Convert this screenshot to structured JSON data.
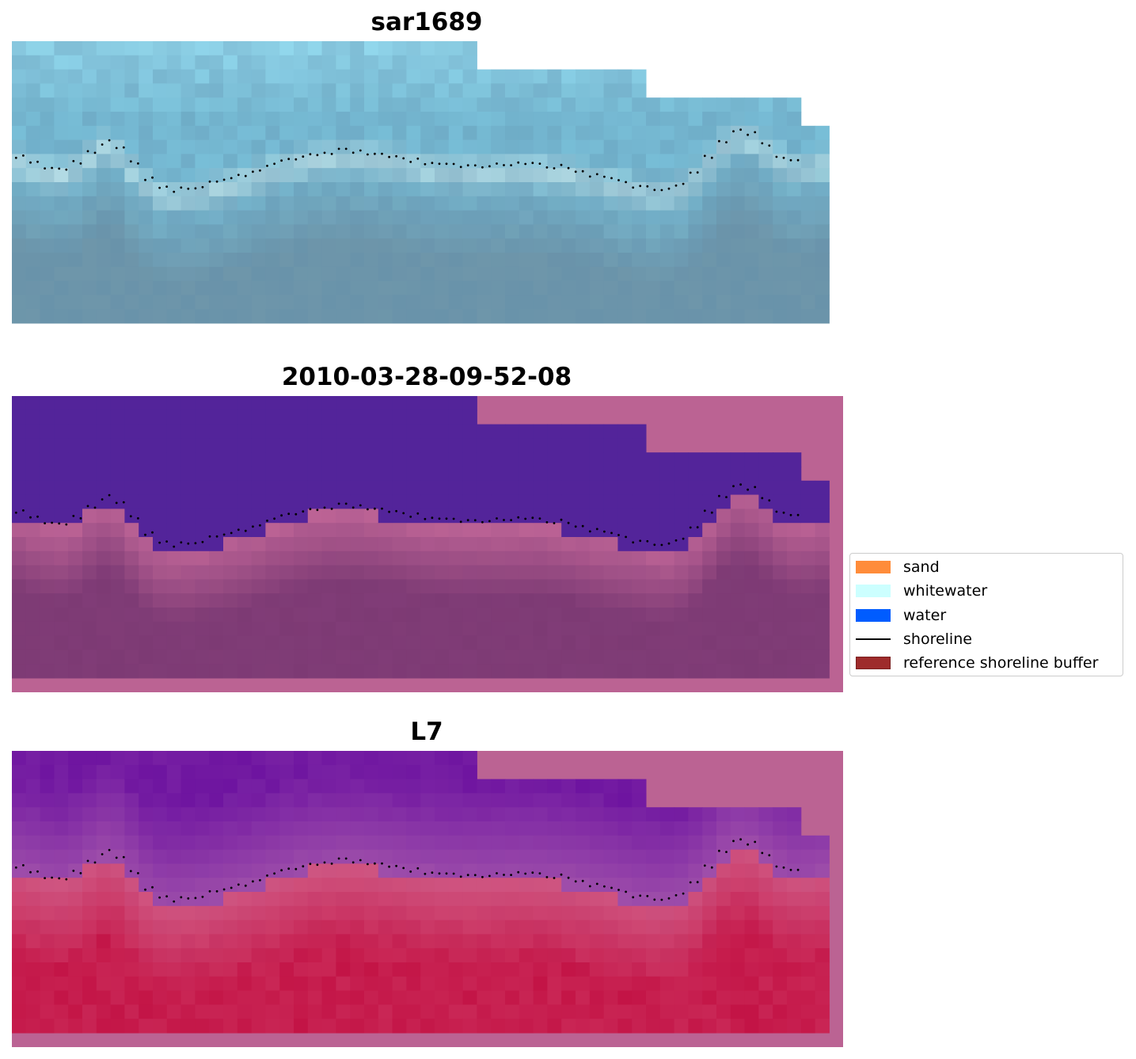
{
  "panels": [
    {
      "id": "rgb",
      "title": "sar1689"
    },
    {
      "id": "class",
      "title": "2010-03-28-09-52-08"
    },
    {
      "id": "mndwi",
      "title": "L7"
    }
  ],
  "legend": {
    "items": [
      {
        "label": "sand",
        "color": "#ff8c3a",
        "kind": "patch"
      },
      {
        "label": "whitewater",
        "color": "#ccffff",
        "kind": "patch"
      },
      {
        "label": "water",
        "color": "#005cff",
        "kind": "patch"
      },
      {
        "label": "shoreline",
        "color": "#000000",
        "kind": "line"
      },
      {
        "label": "reference shoreline buffer",
        "color": "#9e2b2b",
        "kind": "patch"
      }
    ]
  },
  "colors": {
    "buffer_overlay": "#bb6393",
    "water_purple": "#53249a",
    "land_purple": "#7d3a74",
    "shoreline": "#000000"
  }
}
